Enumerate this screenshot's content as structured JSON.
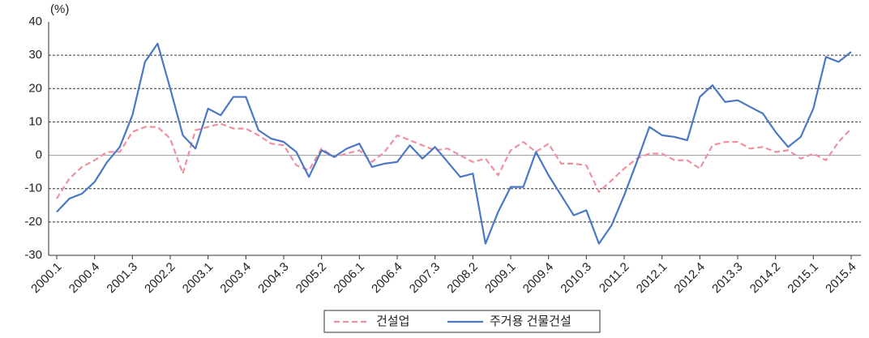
{
  "chart_data": {
    "type": "line",
    "y_unit_label": "(%)",
    "categories": [
      "2000.1",
      null,
      null,
      "2000.4",
      null,
      null,
      "2001.3",
      null,
      null,
      "2002.2",
      null,
      null,
      "2003.1",
      null,
      null,
      "2003.4",
      null,
      null,
      "2004.3",
      null,
      null,
      "2005.2",
      null,
      null,
      "2006.1",
      null,
      null,
      "2006.4",
      null,
      null,
      "2007.3",
      null,
      null,
      "2008.2",
      null,
      null,
      "2009.1",
      null,
      null,
      "2009.4",
      null,
      null,
      "2010.3",
      null,
      null,
      "2011.2",
      null,
      null,
      "2012.1",
      null,
      null,
      "2012.4",
      null,
      null,
      "2013.3",
      null,
      null,
      "2014.2",
      null,
      null,
      "2015.1",
      null,
      null,
      "2015.4"
    ],
    "series": [
      {
        "name": "건설업",
        "color": "#f0909e",
        "dash": true,
        "values": [
          -13,
          -7,
          -3.5,
          -1.5,
          1,
          1,
          7,
          8.5,
          8.5,
          5,
          -5.5,
          7.5,
          8.5,
          9.5,
          8,
          8,
          6,
          3.5,
          3,
          -3,
          -4.5,
          2,
          -0.5,
          0.5,
          1.5,
          -2,
          1,
          6,
          4.5,
          3,
          1.5,
          2,
          0,
          -2,
          -1,
          -6,
          1.5,
          4,
          1,
          3.5,
          -2.5,
          -2.5,
          -3,
          -11,
          -7.5,
          -4,
          -1,
          0.5,
          0.5,
          -1.5,
          -1.5,
          -4,
          3,
          4,
          4,
          2,
          2.5,
          1,
          1.5,
          -1,
          0.5,
          -1.5,
          4,
          8
        ]
      },
      {
        "name": "주거용 건물건설",
        "color": "#4a78c4",
        "dash": false,
        "values": [
          -17,
          -13,
          -11.5,
          -8,
          -2,
          2.5,
          12,
          28,
          33.5,
          20,
          6,
          2,
          14,
          12,
          17.5,
          17.5,
          7.5,
          5,
          4,
          1,
          -6.5,
          1.5,
          -0.5,
          2,
          3.5,
          -3.5,
          -2.5,
          -2,
          3,
          -1,
          2.5,
          -2,
          -6.5,
          -5.5,
          -26.5,
          -17,
          -9.5,
          -9.5,
          1,
          -6,
          -12,
          -18,
          -16.5,
          -26.5,
          -21,
          -12,
          -2,
          8.5,
          6,
          5.5,
          4.5,
          17.5,
          21,
          16,
          16.5,
          14.5,
          12.5,
          7,
          2.5,
          5.5,
          14,
          29.5,
          28,
          31
        ]
      }
    ],
    "ylim": [
      -30,
      40
    ],
    "yticks": [
      -30,
      -20,
      -10,
      0,
      10,
      20,
      30,
      40
    ],
    "grid": true
  }
}
